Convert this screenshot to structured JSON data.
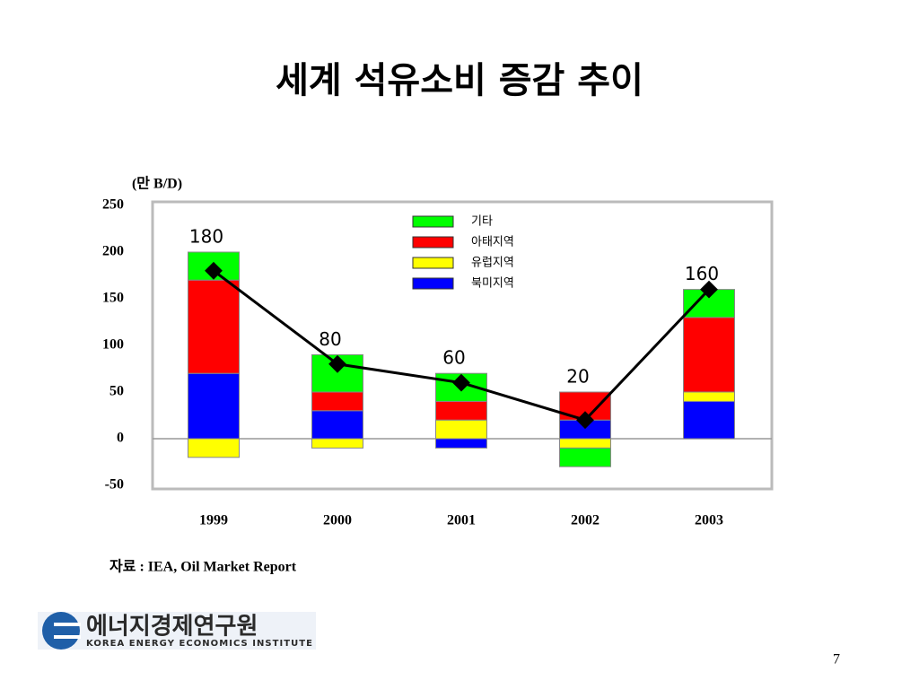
{
  "title": "세계 석유소비 증감 추이",
  "chart_data": {
    "type": "stacked_bar_line",
    "y_label": "(만 B/D)",
    "categories": [
      "1999",
      "2000",
      "2001",
      "2002",
      "2003"
    ],
    "series": [
      {
        "name": "북미지역",
        "color": "#0000ff",
        "values": [
          70,
          30,
          -10,
          20,
          40
        ]
      },
      {
        "name": "유럽지역",
        "color": "#ffff00",
        "values": [
          -20,
          -10,
          20,
          -10,
          10
        ]
      },
      {
        "name": "아태지역",
        "color": "#ff0000",
        "values": [
          100,
          20,
          20,
          30,
          80
        ]
      },
      {
        "name": "기타",
        "color": "#00ff00",
        "values": [
          30,
          40,
          30,
          -20,
          30
        ]
      }
    ],
    "totals": [
      180,
      80,
      60,
      20,
      160
    ],
    "ylim": [
      -50,
      250
    ],
    "yticks": [
      -50,
      0,
      50,
      100,
      150,
      200,
      250
    ]
  },
  "source": "자료 : IEA, Oil Market Report",
  "logo": {
    "name": "에너지경제연구원",
    "english": "KOREA ENERGY ECONOMICS INSTITUTE"
  },
  "page_number": "7"
}
